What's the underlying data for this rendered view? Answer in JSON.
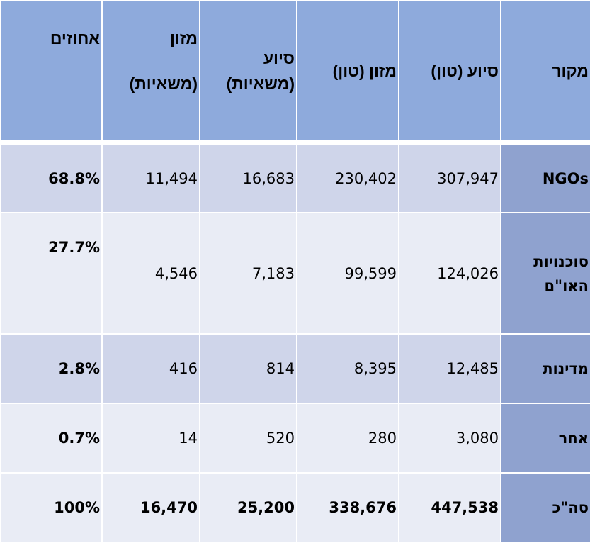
{
  "colors": {
    "header_bg": "#8eaadc",
    "source_col_bg": "#8fa2cf",
    "row_odd_bg": "#cfd5ea",
    "row_even_bg": "#e9ecf5"
  },
  "headers": [
    "מקור",
    "סיוע (טון)",
    "מזון (טון)",
    "סיוע (משאיות)",
    "מזון (משאיות)",
    "אחוזים"
  ],
  "rows": [
    {
      "source": "NGOs",
      "aid_tons": "307,947",
      "food_tons": "230,402",
      "aid_trucks": "16,683",
      "food_trucks": "11,494",
      "percent": "68.8%"
    },
    {
      "source": "סוכנויות האו\"ם",
      "aid_tons": "124,026",
      "food_tons": "99,599",
      "aid_trucks": "7,183",
      "food_trucks": "4,546",
      "percent": "27.7%"
    },
    {
      "source": "מדינות",
      "aid_tons": "12,485",
      "food_tons": "8,395",
      "aid_trucks": "814",
      "food_trucks": "416",
      "percent": "2.8%"
    },
    {
      "source": "אחר",
      "aid_tons": "3,080",
      "food_tons": "280",
      "aid_trucks": "520",
      "food_trucks": "14",
      "percent": "0.7%"
    },
    {
      "source": "סה\"כ",
      "aid_tons": "447,538",
      "food_tons": "338,676",
      "aid_trucks": "25,200",
      "food_trucks": "16,470",
      "percent": "100%"
    }
  ]
}
